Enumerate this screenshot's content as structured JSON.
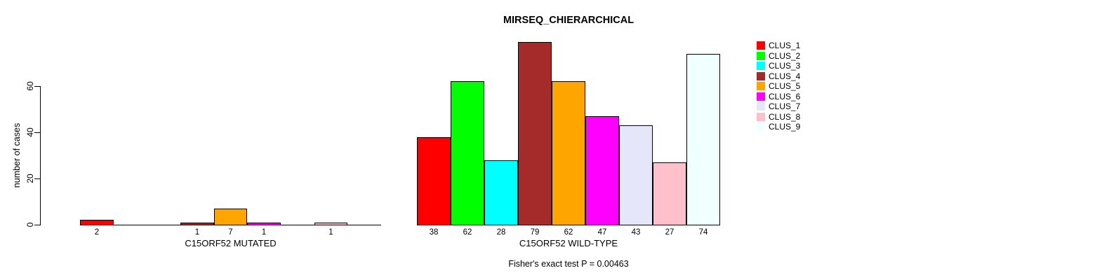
{
  "chart_data": {
    "type": "bar",
    "title": "MIRSEQ_CHIERARCHICAL",
    "ylabel": "number of cases",
    "footnote": "Fisher's exact test P = 0.00463",
    "yticks": [
      0,
      20,
      40,
      60
    ],
    "ylim": [
      0,
      80
    ],
    "grid": false,
    "legend_position": "right",
    "categories": [
      "CLUS_1",
      "CLUS_2",
      "CLUS_3",
      "CLUS_4",
      "CLUS_5",
      "CLUS_6",
      "CLUS_7",
      "CLUS_8",
      "CLUS_9"
    ],
    "palette": [
      "#FF0000",
      "#00FF00",
      "#00FFFF",
      "#A52A2A",
      "#FFA500",
      "#FF00FF",
      "#E6E6FA",
      "#FFC0CB",
      "#F0FFFF"
    ],
    "panels": [
      {
        "xlabel": "C15ORF52 MUTATED",
        "values": [
          2,
          0,
          0,
          1,
          7,
          1,
          0,
          1,
          0
        ],
        "bar_labels": [
          "2",
          "",
          "",
          "1",
          "7",
          "1",
          "",
          "1",
          ""
        ]
      },
      {
        "xlabel": "C15ORF52 WILD-TYPE",
        "values": [
          38,
          62,
          28,
          79,
          62,
          47,
          43,
          27,
          74
        ],
        "bar_labels": [
          "38",
          "62",
          "28",
          "79",
          "62",
          "47",
          "43",
          "27",
          "74"
        ]
      }
    ]
  }
}
